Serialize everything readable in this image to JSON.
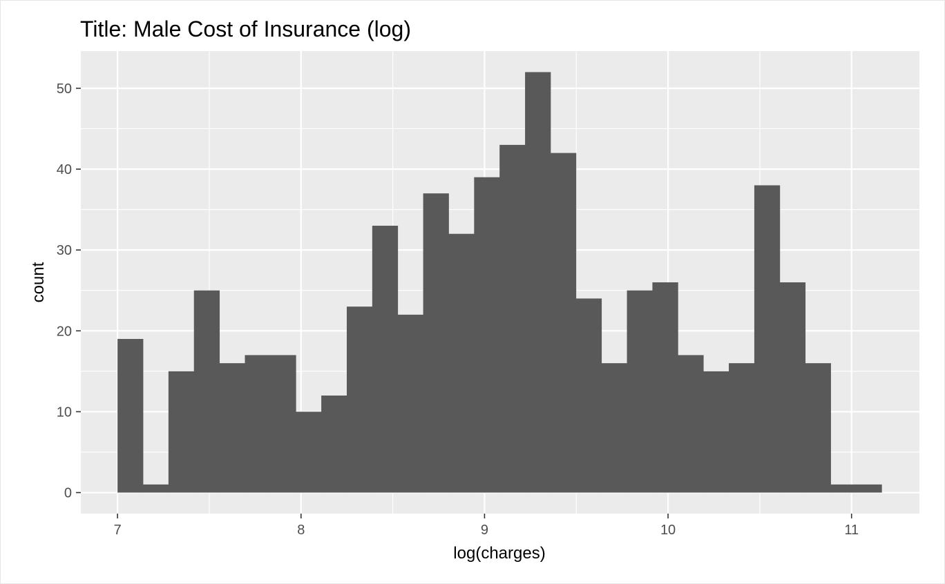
{
  "chart_data": {
    "type": "bar",
    "title": "Title: Male Cost of Insurance (log)",
    "xlabel": "log(charges)",
    "ylabel": "count",
    "xlim": [
      6.8,
      11.37
    ],
    "ylim": [
      -2.6,
      54.6
    ],
    "xticks": [
      7,
      8,
      9,
      10,
      11
    ],
    "yticks": [
      0,
      10,
      20,
      30,
      40,
      50
    ],
    "bin_start": 7.0,
    "bin_width": 0.1388,
    "values": [
      19,
      1,
      15,
      25,
      16,
      17,
      17,
      10,
      12,
      23,
      33,
      22,
      37,
      32,
      39,
      43,
      52,
      42,
      24,
      16,
      25,
      26,
      17,
      15,
      16,
      38,
      26,
      16,
      1,
      1
    ],
    "bar_color": "#595959",
    "panel_color": "#ebebeb",
    "grid": true,
    "legend": "none"
  }
}
